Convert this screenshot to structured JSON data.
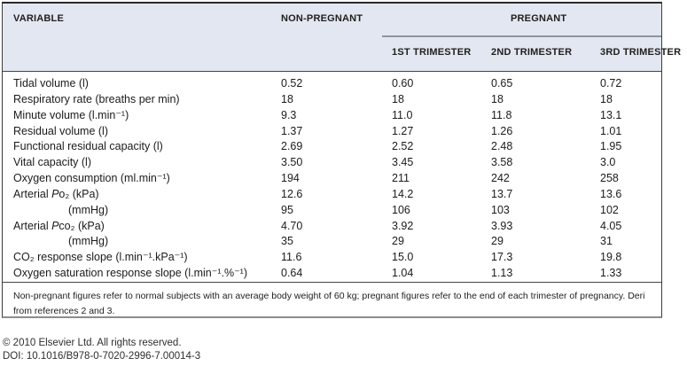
{
  "colors": {
    "header_band_bg": "#e2e7f1",
    "border_dark": "#3c3c3c",
    "rule_gray": "#8f949c",
    "bottom_border_gray": "#8d8d8d"
  },
  "table": {
    "header": {
      "variable": "VARIABLE",
      "non_pregnant": "NON-PREGNANT",
      "pregnant": "PREGNANT",
      "trimesters": [
        "1ST TRIMESTER",
        "2ND TRIMESTER",
        "3RD TRIMESTER"
      ]
    },
    "rows": [
      {
        "label": "Tidal volume (l)",
        "values": [
          "0.52",
          "0.60",
          "0.65",
          "0.72"
        ]
      },
      {
        "label": "Respiratory rate (breaths per min)",
        "values": [
          "18",
          "18",
          "18",
          "18"
        ]
      },
      {
        "label": "Minute volume (l.min⁻¹)",
        "values": [
          "9.3",
          "11.0",
          "11.8",
          "13.1"
        ]
      },
      {
        "label": "Residual volume (l)",
        "values": [
          "1.37",
          "1.27",
          "1.26",
          "1.01"
        ]
      },
      {
        "label": "Functional residual capacity (l)",
        "values": [
          "2.69",
          "2.52",
          "2.48",
          "1.95"
        ]
      },
      {
        "label": "Vital capacity (l)",
        "values": [
          "3.50",
          "3.45",
          "3.58",
          "3.0"
        ]
      },
      {
        "label": "Oxygen consumption (ml.min⁻¹)",
        "values": [
          "194",
          "211",
          "242",
          "258"
        ]
      },
      {
        "label_pre": "Arterial ",
        "label_it": "P",
        "label_post": "o₂ (kPa)",
        "values": [
          "12.6",
          "14.2",
          "13.7",
          "13.6"
        ]
      },
      {
        "label": "(mmHg)",
        "indent": true,
        "values": [
          "95",
          "106",
          "103",
          "102"
        ]
      },
      {
        "label_pre": "Arterial ",
        "label_it": "P",
        "label_post": "co₂ (kPa)",
        "values": [
          "4.70",
          "3.92",
          "3.93",
          "4.05"
        ]
      },
      {
        "label": "(mmHg)",
        "indent": true,
        "values": [
          "35",
          "29",
          "29",
          "31"
        ]
      },
      {
        "label": "CO₂ response slope (l.min⁻¹.kPa⁻¹)",
        "values": [
          "11.6",
          "15.0",
          "17.3",
          "19.8"
        ]
      },
      {
        "label": "Oxygen saturation response slope (l.min⁻¹.%⁻¹)",
        "values": [
          "0.64",
          "1.04",
          "1.13",
          "1.33"
        ]
      }
    ],
    "footnote": {
      "line1": "Non-pregnant figures refer to normal subjects with an average body weight of 60 kg; pregnant figures refer to the end of each trimester of pregnancy. Deri",
      "line2": "from references 2 and 3."
    }
  },
  "footer": {
    "copyright": "© 2010 Elsevier Ltd. All rights reserved.",
    "doi": "DOI: 10.1016/B978-0-7020-2996-7.00014-3"
  }
}
